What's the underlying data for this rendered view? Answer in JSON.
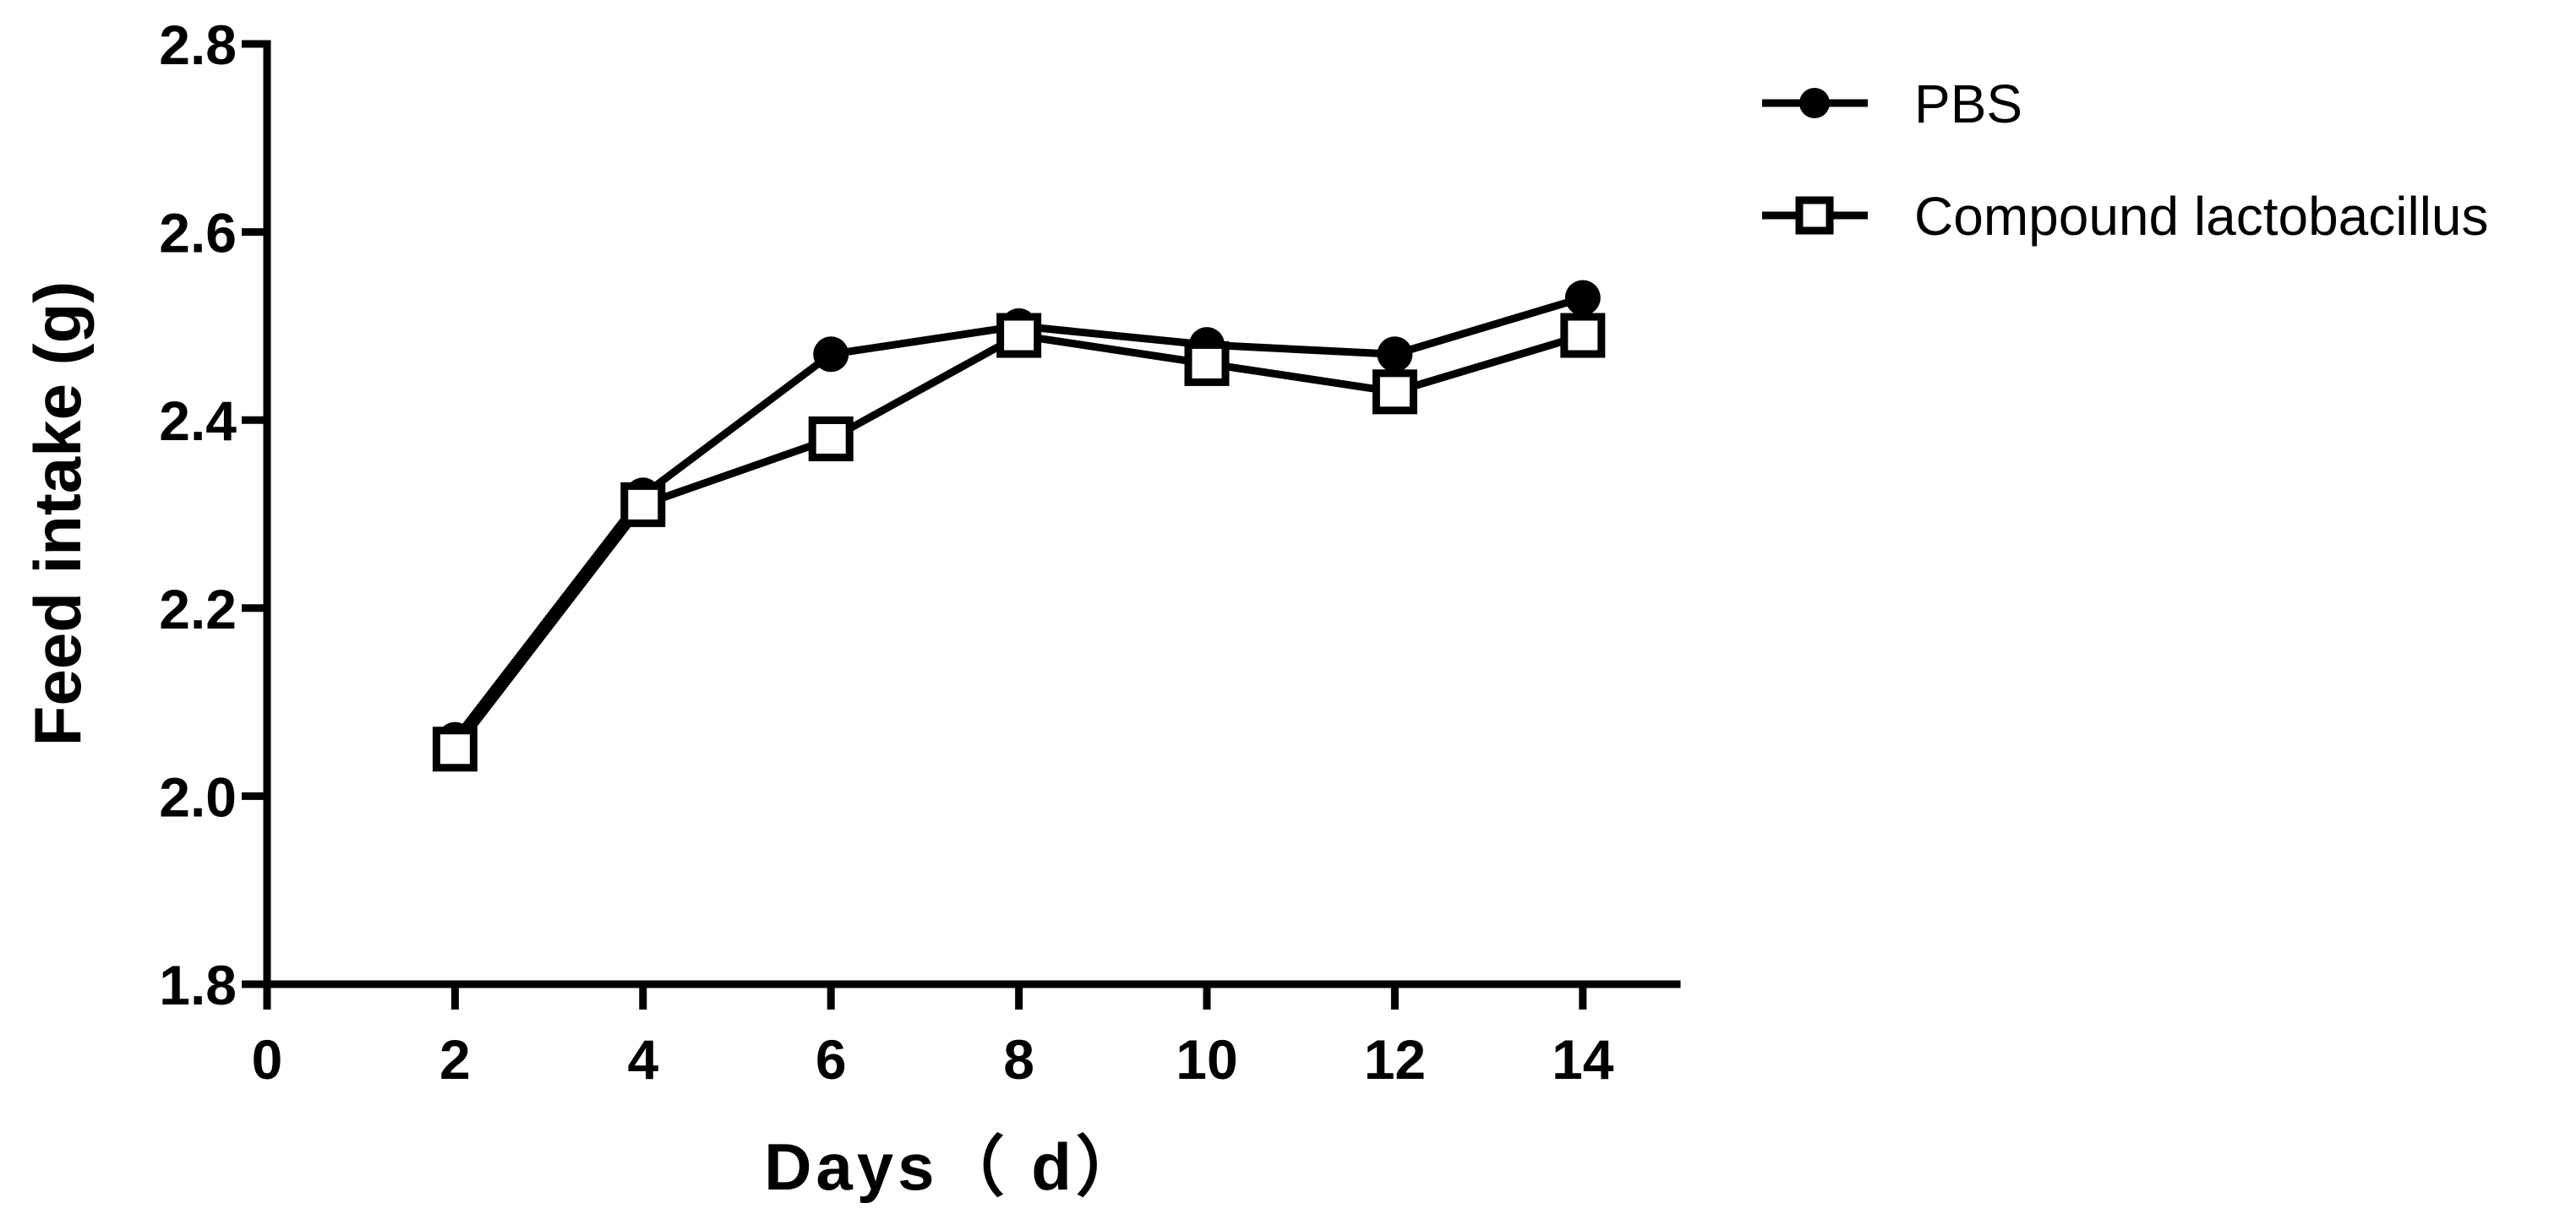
{
  "chart_data": {
    "type": "line",
    "xlabel": "Days（ d）",
    "ylabel": "Feed intake (g)",
    "xlim": [
      0,
      15
    ],
    "ylim": [
      1.8,
      2.8
    ],
    "xticks": [
      0,
      2,
      4,
      6,
      8,
      10,
      12,
      14
    ],
    "yticks": [
      1.8,
      2.0,
      2.2,
      2.4,
      2.6,
      2.8
    ],
    "xtick_labels": [
      "0",
      "2",
      "4",
      "6",
      "8",
      "10",
      "12",
      "14"
    ],
    "ytick_labels": [
      "1.8",
      "2.0",
      "2.2",
      "2.4",
      "2.6",
      "2.8"
    ],
    "x": [
      2,
      4,
      6,
      8,
      10,
      12,
      14
    ],
    "series": [
      {
        "name": "PBS",
        "marker": "filled-circle",
        "values": [
          2.06,
          2.32,
          2.47,
          2.5,
          2.48,
          2.47,
          2.53
        ]
      },
      {
        "name": "Compound lactobacillus",
        "marker": "open-square",
        "values": [
          2.05,
          2.31,
          2.38,
          2.49,
          2.46,
          2.43,
          2.49
        ]
      }
    ],
    "legend_position": "top-right",
    "grid": false,
    "colors": {
      "line": "#000000",
      "marker_fill_open": "#ffffff"
    }
  }
}
